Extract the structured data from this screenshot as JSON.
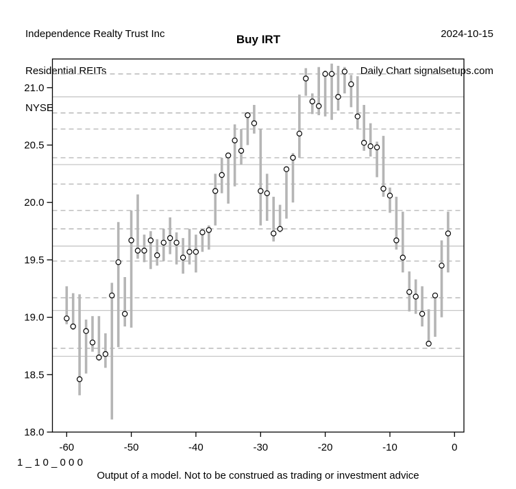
{
  "header": {
    "company": "Independence Realty Trust Inc",
    "sector": "Residential REITs",
    "exchange": "NYSE",
    "date": "2024-10-15",
    "source": "Daily Chart signalsetups.com"
  },
  "title": "Buy IRT",
  "footer": {
    "model_code": "1 _ 1 0 _ 0 0 0",
    "disclaimer": "Output of a model. Not to be construed as trading or investment advice"
  },
  "chart_data": {
    "type": "hilo-range-bars-with-points",
    "title": "Buy IRT",
    "xlabel": "",
    "ylabel": "",
    "x_domain": [
      -62.2,
      1.45
    ],
    "y_domain": [
      18.0,
      21.25
    ],
    "grid": "custom-levels",
    "legend": "none",
    "x_ticks": [
      {
        "value": -60,
        "label": "-60"
      },
      {
        "value": -50,
        "label": "-50"
      },
      {
        "value": -40,
        "label": "-40"
      },
      {
        "value": -30,
        "label": "-30"
      },
      {
        "value": -20,
        "label": "-20"
      },
      {
        "value": -10,
        "label": "-10"
      },
      {
        "value": 0,
        "label": "0"
      }
    ],
    "y_ticks": [
      {
        "value": 18.0,
        "label": "18.0"
      },
      {
        "value": 18.5,
        "label": "18.5"
      },
      {
        "value": 19.0,
        "label": "19.0"
      },
      {
        "value": 19.5,
        "label": "19.5"
      },
      {
        "value": 20.0,
        "label": "20.0"
      },
      {
        "value": 20.5,
        "label": "20.5"
      },
      {
        "value": 21.0,
        "label": "21.0"
      }
    ],
    "levels": {
      "solid": [
        20.92,
        20.33,
        19.62,
        19.06,
        18.66
      ],
      "dashed": [
        21.12,
        20.78,
        20.64,
        20.39,
        20.16,
        19.93,
        19.77,
        19.49,
        19.17,
        18.73
      ]
    },
    "colors": {
      "bar": "#b5b5b5",
      "point_stroke": "#000000",
      "point_fill": "#ffffff",
      "level_solid": "#c6c6c6",
      "level_dashed": "#b2b2b2",
      "frame": "#000000"
    },
    "series": [
      {
        "x": -60,
        "point": 18.99,
        "low": 18.94,
        "high": 19.27
      },
      {
        "x": -59,
        "point": 18.92,
        "low": 18.89,
        "high": 19.21
      },
      {
        "x": -58,
        "point": 18.46,
        "low": 18.32,
        "high": 19.2
      },
      {
        "x": -57,
        "point": 18.88,
        "low": 18.51,
        "high": 18.98
      },
      {
        "x": -56,
        "point": 18.78,
        "low": 18.7,
        "high": 19.01
      },
      {
        "x": -55,
        "point": 18.65,
        "low": 18.62,
        "high": 19.01
      },
      {
        "x": -54,
        "point": 18.68,
        "low": 18.56,
        "high": 18.86
      },
      {
        "x": -53,
        "point": 19.19,
        "low": 18.11,
        "high": 19.3
      },
      {
        "x": -52,
        "point": 19.48,
        "low": 18.74,
        "high": 19.83
      },
      {
        "x": -51,
        "point": 19.03,
        "low": 18.92,
        "high": 19.35
      },
      {
        "x": -50,
        "point": 19.67,
        "low": 18.91,
        "high": 19.93
      },
      {
        "x": -49,
        "point": 19.58,
        "low": 19.51,
        "high": 20.07
      },
      {
        "x": -48,
        "point": 19.58,
        "low": 19.48,
        "high": 19.72
      },
      {
        "x": -47,
        "point": 19.67,
        "low": 19.42,
        "high": 19.75
      },
      {
        "x": -46,
        "point": 19.54,
        "low": 19.45,
        "high": 19.68
      },
      {
        "x": -45,
        "point": 19.65,
        "low": 19.49,
        "high": 19.77
      },
      {
        "x": -44,
        "point": 19.69,
        "low": 19.55,
        "high": 19.87
      },
      {
        "x": -43,
        "point": 19.65,
        "low": 19.46,
        "high": 19.74
      },
      {
        "x": -42,
        "point": 19.52,
        "low": 19.38,
        "high": 19.69
      },
      {
        "x": -41,
        "point": 19.57,
        "low": 19.46,
        "high": 19.77
      },
      {
        "x": -40,
        "point": 19.57,
        "low": 19.39,
        "high": 19.72
      },
      {
        "x": -39,
        "point": 19.74,
        "low": 19.57,
        "high": 19.77
      },
      {
        "x": -38,
        "point": 19.76,
        "low": 19.59,
        "high": 19.8
      },
      {
        "x": -37,
        "point": 20.1,
        "low": 19.8,
        "high": 20.25
      },
      {
        "x": -36,
        "point": 20.24,
        "low": 20.08,
        "high": 20.39
      },
      {
        "x": -35,
        "point": 20.41,
        "low": 19.99,
        "high": 20.42
      },
      {
        "x": -34,
        "point": 20.54,
        "low": 20.14,
        "high": 20.68
      },
      {
        "x": -33,
        "point": 20.45,
        "low": 20.33,
        "high": 20.64
      },
      {
        "x": -32,
        "point": 20.76,
        "low": 20.5,
        "high": 20.78
      },
      {
        "x": -31,
        "point": 20.69,
        "low": 20.6,
        "high": 20.85
      },
      {
        "x": -30,
        "point": 20.1,
        "low": 19.8,
        "high": 20.64
      },
      {
        "x": -29,
        "point": 20.08,
        "low": 19.84,
        "high": 20.25
      },
      {
        "x": -28,
        "point": 19.73,
        "low": 19.66,
        "high": 20.05
      },
      {
        "x": -27,
        "point": 19.77,
        "low": 19.74,
        "high": 19.98
      },
      {
        "x": -26,
        "point": 20.29,
        "low": 19.86,
        "high": 20.31
      },
      {
        "x": -25,
        "point": 20.39,
        "low": 20.0,
        "high": 20.43
      },
      {
        "x": -24,
        "point": 20.6,
        "low": 20.39,
        "high": 20.94
      },
      {
        "x": -23,
        "point": 21.08,
        "low": 20.93,
        "high": 21.17
      },
      {
        "x": -22,
        "point": 20.88,
        "low": 20.77,
        "high": 20.95
      },
      {
        "x": -21,
        "point": 20.84,
        "low": 20.76,
        "high": 21.18
      },
      {
        "x": -20,
        "point": 21.12,
        "low": 20.75,
        "high": 21.15
      },
      {
        "x": -19,
        "point": 21.12,
        "low": 20.72,
        "high": 21.21
      },
      {
        "x": -18,
        "point": 20.92,
        "low": 20.8,
        "high": 21.19
      },
      {
        "x": -17,
        "point": 21.14,
        "low": 20.95,
        "high": 21.18
      },
      {
        "x": -16,
        "point": 21.03,
        "low": 20.83,
        "high": 21.11
      },
      {
        "x": -15,
        "point": 20.75,
        "low": 20.64,
        "high": 21.1
      },
      {
        "x": -14,
        "point": 20.52,
        "low": 20.45,
        "high": 20.85
      },
      {
        "x": -13,
        "point": 20.49,
        "low": 20.4,
        "high": 20.69
      },
      {
        "x": -12,
        "point": 20.48,
        "low": 20.22,
        "high": 20.53
      },
      {
        "x": -11,
        "point": 20.12,
        "low": 20.05,
        "high": 20.58
      },
      {
        "x": -10,
        "point": 20.06,
        "low": 19.91,
        "high": 20.13
      },
      {
        "x": -9,
        "point": 19.67,
        "low": 19.59,
        "high": 20.05
      },
      {
        "x": -8,
        "point": 19.52,
        "low": 19.39,
        "high": 19.92
      },
      {
        "x": -7,
        "point": 19.22,
        "low": 19.05,
        "high": 19.4
      },
      {
        "x": -6,
        "point": 19.18,
        "low": 19.03,
        "high": 19.33
      },
      {
        "x": -5,
        "point": 19.03,
        "low": 18.92,
        "high": 19.27
      },
      {
        "x": -4,
        "point": 18.77,
        "low": 18.77,
        "high": 19.07
      },
      {
        "x": -3,
        "point": 19.19,
        "low": 18.83,
        "high": 19.19
      },
      {
        "x": -2,
        "point": 19.45,
        "low": 19.0,
        "high": 19.67
      },
      {
        "x": -1,
        "point": 19.73,
        "low": 19.39,
        "high": 19.92
      }
    ]
  }
}
